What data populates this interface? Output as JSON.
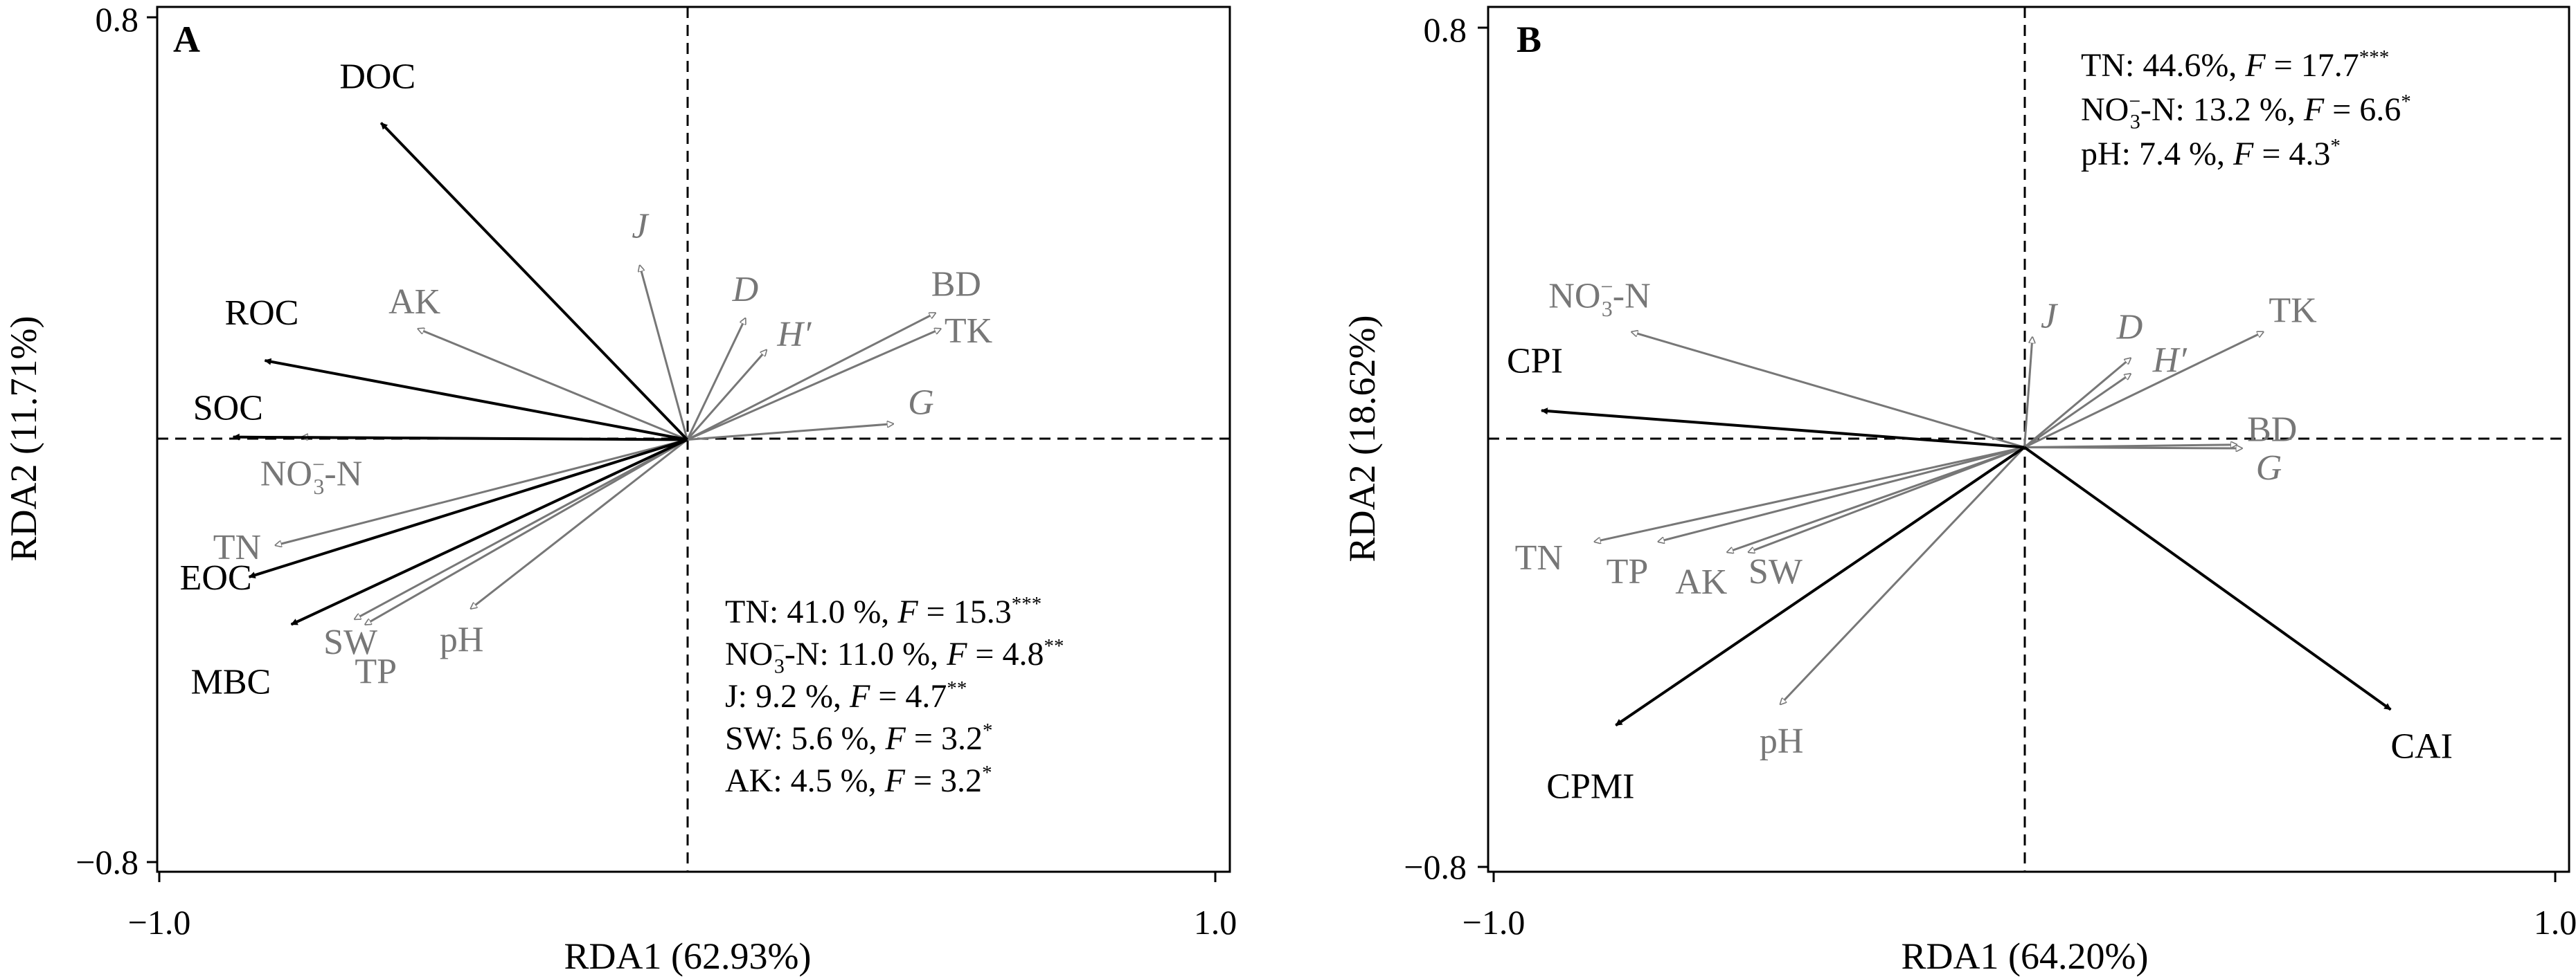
{
  "chart_data": [
    {
      "type": "scatter",
      "panel": "A",
      "xlabel": "RDA1 (62.93%)",
      "ylabel": "RDA2 (11.71%)",
      "xlim": [
        -1.0,
        1.0
      ],
      "ylim": [
        -0.8,
        0.8
      ],
      "x_ticks": [
        {
          "value": -1.0,
          "label": "−1.0"
        },
        {
          "value": 1.0,
          "label": "1.0"
        }
      ],
      "y_ticks": [
        {
          "value": 0.8,
          "label": "0.8"
        },
        {
          "value": -0.8,
          "label": "−0.8"
        }
      ],
      "response_vectors": [
        {
          "label": "DOC",
          "x": -0.58,
          "y": 0.6
        },
        {
          "label": "ROC",
          "x": -0.8,
          "y": 0.15
        },
        {
          "label": "SOC",
          "x": -0.86,
          "y": 0.005
        },
        {
          "label": "EOC",
          "x": -0.83,
          "y": -0.26
        },
        {
          "label": "MBC",
          "x": -0.75,
          "y": -0.35
        }
      ],
      "explanatory_vectors": [
        {
          "label": "J",
          "x": -0.09,
          "y": 0.33,
          "italic": true
        },
        {
          "label": "AK",
          "x": -0.51,
          "y": 0.21
        },
        {
          "label": "D",
          "x": 0.11,
          "y": 0.23,
          "italic": true
        },
        {
          "label": "H′",
          "x": 0.15,
          "y": 0.17,
          "italic": true
        },
        {
          "label": "BD",
          "x": 0.47,
          "y": 0.24
        },
        {
          "label": "TK",
          "x": 0.48,
          "y": 0.21
        },
        {
          "label": "G",
          "x": 0.39,
          "y": 0.03,
          "italic": true
        },
        {
          "label": "NO3-N",
          "x": -0.73,
          "y": 0.005
        },
        {
          "label": "TN",
          "x": -0.78,
          "y": -0.2
        },
        {
          "label": "SW",
          "x": -0.63,
          "y": -0.34
        },
        {
          "label": "TP",
          "x": -0.61,
          "y": -0.35
        },
        {
          "label": "pH",
          "x": -0.41,
          "y": -0.32
        }
      ],
      "annotations": [
        {
          "text": "TN: 41.0 %, ",
          "f": "F",
          "value": " = 15.3",
          "sig": "***"
        },
        {
          "text": "NO3-N: 11.0 %, ",
          "f": "F",
          "value": " = 4.8",
          "sig": "**"
        },
        {
          "text": "J: 9.2 %, ",
          "f": "F",
          "value": " = 4.7",
          "sig": "**"
        },
        {
          "text": "SW: 5.6 %, ",
          "f": "F",
          "value": " = 3.2",
          "sig": "*"
        },
        {
          "text": "AK: 4.5 %, ",
          "f": "F",
          "value": " = 3.2",
          "sig": "*"
        }
      ],
      "colors": {
        "response": "#000000",
        "explanatory": "#777777"
      }
    },
    {
      "type": "scatter",
      "panel": "B",
      "xlabel": "RDA1 (64.20%)",
      "ylabel": "RDA2 (18.62%)",
      "xlim": [
        -1.0,
        1.0
      ],
      "ylim": [
        -0.8,
        0.8
      ],
      "x_ticks": [
        {
          "value": -1.0,
          "label": "−1.0"
        },
        {
          "value": 1.0,
          "label": "1.0"
        }
      ],
      "y_ticks": [
        {
          "value": 0.8,
          "label": "0.8"
        },
        {
          "value": -0.8,
          "label": "−0.8"
        }
      ],
      "response_vectors": [
        {
          "label": "CPI",
          "x": -0.91,
          "y": 0.07
        },
        {
          "label": "CPMI",
          "x": -0.77,
          "y": -0.53
        },
        {
          "label": "CAI",
          "x": 0.69,
          "y": -0.5
        }
      ],
      "explanatory_vectors": [
        {
          "label": "NO3-N",
          "x": -0.74,
          "y": 0.22
        },
        {
          "label": "J",
          "x": 0.015,
          "y": 0.21,
          "italic": true
        },
        {
          "label": "D",
          "x": 0.2,
          "y": 0.17,
          "italic": true
        },
        {
          "label": "H′",
          "x": 0.2,
          "y": 0.14,
          "italic": true
        },
        {
          "label": "TK",
          "x": 0.45,
          "y": 0.22
        },
        {
          "label": "BD",
          "x": 0.4,
          "y": 0.005
        },
        {
          "label": "G",
          "x": 0.41,
          "y": -0.002,
          "italic": true
        },
        {
          "label": "TN",
          "x": -0.81,
          "y": -0.18
        },
        {
          "label": "TP",
          "x": -0.69,
          "y": -0.18
        },
        {
          "label": "AK",
          "x": -0.56,
          "y": -0.2
        },
        {
          "label": "SW",
          "x": -0.52,
          "y": -0.2
        },
        {
          "label": "pH",
          "x": -0.46,
          "y": -0.49
        }
      ],
      "annotations": [
        {
          "text": "TN: 44.6%, ",
          "f": "F",
          "value": " = 17.7",
          "sig": "***"
        },
        {
          "text": "NO3-N: 13.2 %, ",
          "f": "F",
          "value": " = 6.6",
          "sig": "*"
        },
        {
          "text": "pH: 7.4 %, ",
          "f": "F",
          "value": " = 4.3",
          "sig": "*"
        }
      ],
      "colors": {
        "response": "#000000",
        "explanatory": "#777777"
      }
    }
  ]
}
